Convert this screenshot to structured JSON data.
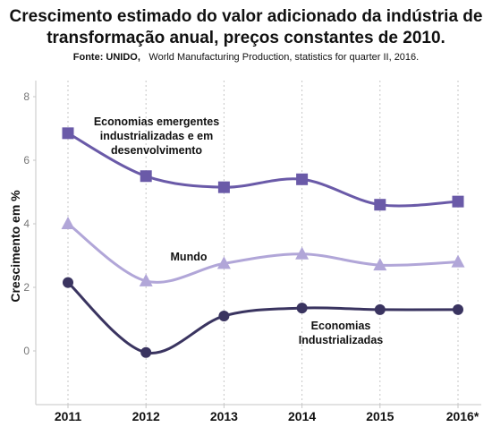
{
  "header": {
    "title_line1": "Crescimento estimado do valor adicionado da indústria de",
    "title_line2": "transformação anual, preços constantes de 2010.",
    "source_label": "Fonte: UNIDO,",
    "source_text": "World Manufacturing Production, statistics for quarter II, 2016."
  },
  "chart_data": {
    "type": "line",
    "categories": [
      "2011",
      "2012",
      "2013",
      "2014",
      "2015",
      "2016*"
    ],
    "ylabel": "Crescimento em %",
    "xlabel": "",
    "ylim": [
      -1.5,
      8
    ],
    "yticks": [
      0,
      2,
      4,
      6,
      8
    ],
    "grid": "vertical dashed lines at each category",
    "legend": "none (series labelled by in-plot annotations)",
    "series": [
      {
        "name": "Economias emergentes industrializadas e em desenvolvimento",
        "label_lines": [
          "Economias emergentes",
          "industrializadas e em",
          "desenvolvimento"
        ],
        "values": [
          6.85,
          5.5,
          5.15,
          5.4,
          4.6,
          4.7
        ],
        "marker": "square",
        "color": "#6a5aa8"
      },
      {
        "name": "Mundo",
        "label_lines": [
          "Mundo"
        ],
        "values": [
          4.0,
          2.2,
          2.75,
          3.05,
          2.7,
          2.8
        ],
        "marker": "triangle",
        "color": "#b1a6d8"
      },
      {
        "name": "Economias Industrializadas",
        "label_lines": [
          "Economias",
          "Industrializadas"
        ],
        "values": [
          2.15,
          -0.05,
          1.1,
          1.35,
          1.3,
          1.3
        ],
        "marker": "circle",
        "color": "#3a3460"
      }
    ]
  }
}
